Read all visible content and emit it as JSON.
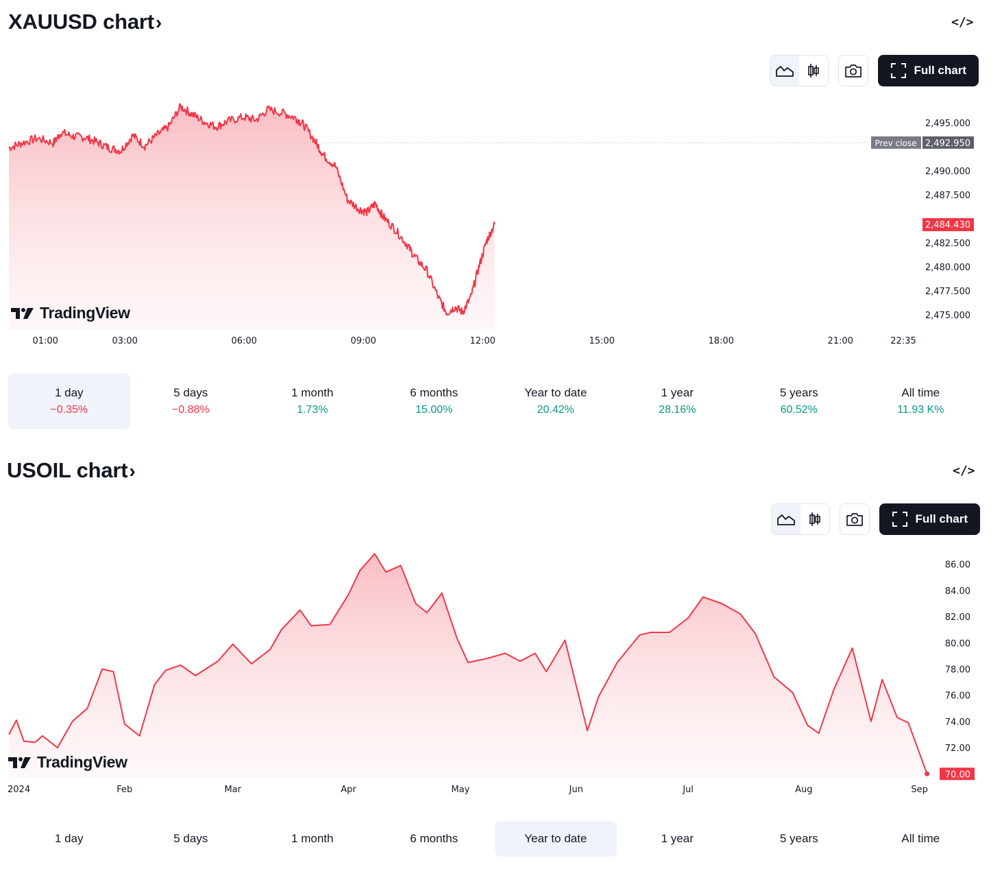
{
  "gold": {
    "title": "XAUUSD chart",
    "title_arrow": "›",
    "embed_label": "</>",
    "full_chart_label": "Full chart",
    "logo_text": "TradingView",
    "prev_close_label": "Prev close",
    "prev_close_value": "2,492.950",
    "last_price_label": "2,484.430",
    "tabs": [
      {
        "label": "1 day",
        "change": "−0.35%",
        "dir": "neg",
        "active": true
      },
      {
        "label": "5 days",
        "change": "−0.88%",
        "dir": "neg",
        "active": false
      },
      {
        "label": "1 month",
        "change": "1.73%",
        "dir": "pos",
        "active": false
      },
      {
        "label": "6 months",
        "change": "15.00%",
        "dir": "pos",
        "active": false
      },
      {
        "label": "Year to date",
        "change": "20.42%",
        "dir": "pos",
        "active": false
      },
      {
        "label": "1 year",
        "change": "28.16%",
        "dir": "pos",
        "active": false
      },
      {
        "label": "5 years",
        "change": "60.52%",
        "dir": "pos",
        "active": false
      },
      {
        "label": "All time",
        "change": "11.93 K%",
        "dir": "pos",
        "active": false
      }
    ]
  },
  "oil": {
    "title": "USOIL chart",
    "title_arrow": "›",
    "embed_label": "</>",
    "full_chart_label": "Full chart",
    "logo_text": "TradingView",
    "last_price_label": "70.00",
    "tabs": [
      {
        "label": "1 day",
        "active": false
      },
      {
        "label": "5 days",
        "active": false
      },
      {
        "label": "1 month",
        "active": false
      },
      {
        "label": "6 months",
        "active": false
      },
      {
        "label": "Year to date",
        "active": true
      },
      {
        "label": "1 year",
        "active": false
      },
      {
        "label": "5 years",
        "active": false
      },
      {
        "label": "All time",
        "active": false
      }
    ]
  },
  "colors": {
    "line": "#f23645",
    "fill_top": "#f9c5ca",
    "axis_text": "#131722",
    "prev_close_bg": "#787b86",
    "neg": "#f23645",
    "pos": "#089981"
  },
  "chart_data": [
    {
      "type": "area",
      "symbol": "XAUUSD",
      "x_unit": "hours",
      "x_ticks": [
        1,
        3,
        6,
        9,
        12,
        15,
        18,
        21,
        22.583
      ],
      "x_tick_labels": [
        "01:00",
        "03:00",
        "06:00",
        "09:00",
        "12:00",
        "15:00",
        "18:00",
        "21:00",
        "22:35"
      ],
      "xlim": [
        0.083,
        22.583
      ],
      "y_ticks": [
        2495,
        2490,
        2487.5,
        2482.5,
        2480,
        2477.5,
        2475
      ],
      "y_tick_labels": [
        "2,495.000",
        "2,490.000",
        "2,487.500",
        "2,482.500",
        "2,480.000",
        "2,477.500",
        "2,475.000"
      ],
      "ylim": [
        2473.5,
        2497.8
      ],
      "prev_close": 2492.95,
      "last_value": 2484.43,
      "grid": false,
      "x": [
        0.083,
        0.4,
        0.8,
        1.2,
        1.4,
        1.7,
        2.0,
        2.3,
        2.6,
        2.9,
        3.2,
        3.5,
        3.8,
        4.1,
        4.4,
        4.7,
        5.0,
        5.3,
        5.6,
        6.0,
        6.3,
        6.6,
        7.0,
        7.3,
        7.5,
        7.8,
        8.0,
        8.3,
        8.6,
        8.9,
        9.1,
        9.3,
        9.5,
        9.8,
        10.1,
        10.3,
        10.6,
        10.9,
        11.1,
        11.3,
        11.5,
        11.7,
        11.9,
        12.1,
        12.3
      ],
      "y": [
        2492.4,
        2492.9,
        2493.4,
        2492.9,
        2494.0,
        2493.6,
        2493.5,
        2493.0,
        2492.4,
        2492.1,
        2493.7,
        2492.6,
        2493.7,
        2494.6,
        2496.7,
        2495.9,
        2495.1,
        2494.6,
        2495.2,
        2495.6,
        2495.3,
        2496.4,
        2496.0,
        2495.5,
        2494.8,
        2493.0,
        2491.6,
        2490.5,
        2487.0,
        2486.0,
        2485.7,
        2486.6,
        2485.2,
        2483.9,
        2482.3,
        2481.0,
        2479.6,
        2476.7,
        2475.2,
        2475.8,
        2475.3,
        2476.8,
        2479.9,
        2482.7,
        2484.43
      ]
    },
    {
      "type": "area",
      "symbol": "USOIL",
      "x_tick_labels": [
        "2024",
        "Feb",
        "Mar",
        "Apr",
        "May",
        "Jun",
        "Jul",
        "Aug",
        "Sep"
      ],
      "x_ticks": [
        "2024-01-01",
        "2024-02-01",
        "2024-03-01",
        "2024-04-01",
        "2024-05-01",
        "2024-06-01",
        "2024-07-01",
        "2024-08-01",
        "2024-09-01"
      ],
      "xlim": [
        "2024-01-01",
        "2024-09-04"
      ],
      "y_ticks": [
        86,
        84,
        82,
        80,
        78,
        76,
        74,
        72
      ],
      "y_tick_labels": [
        "86.00",
        "84.00",
        "82.00",
        "80.00",
        "78.00",
        "76.00",
        "74.00",
        "72.00"
      ],
      "ylim": [
        69.7,
        87.5
      ],
      "last_value": 70.0,
      "grid": false,
      "x": [
        "2024-01-01",
        "2024-01-03",
        "2024-01-05",
        "2024-01-08",
        "2024-01-10",
        "2024-01-14",
        "2024-01-18",
        "2024-01-22",
        "2024-01-26",
        "2024-01-29",
        "2024-02-01",
        "2024-02-05",
        "2024-02-09",
        "2024-02-12",
        "2024-02-16",
        "2024-02-20",
        "2024-02-26",
        "2024-03-01",
        "2024-03-06",
        "2024-03-11",
        "2024-03-14",
        "2024-03-19",
        "2024-03-22",
        "2024-03-27",
        "2024-04-01",
        "2024-04-04",
        "2024-04-08",
        "2024-04-11",
        "2024-04-15",
        "2024-04-19",
        "2024-04-22",
        "2024-04-26",
        "2024-04-30",
        "2024-05-03",
        "2024-05-08",
        "2024-05-13",
        "2024-05-17",
        "2024-05-21",
        "2024-05-24",
        "2024-05-29",
        "2024-06-04",
        "2024-06-07",
        "2024-06-12",
        "2024-06-18",
        "2024-06-21",
        "2024-06-26",
        "2024-07-01",
        "2024-07-05",
        "2024-07-10",
        "2024-07-15",
        "2024-07-19",
        "2024-07-24",
        "2024-07-29",
        "2024-08-02",
        "2024-08-05",
        "2024-08-09",
        "2024-08-14",
        "2024-08-19",
        "2024-08-22",
        "2024-08-26",
        "2024-08-29",
        "2024-09-03"
      ],
      "y": [
        73.0,
        74.1,
        72.5,
        72.4,
        72.9,
        72.0,
        74.0,
        75.0,
        78.0,
        77.8,
        73.8,
        72.9,
        76.8,
        77.9,
        78.3,
        77.5,
        78.6,
        79.9,
        78.4,
        79.5,
        81.0,
        82.5,
        81.3,
        81.4,
        83.7,
        85.5,
        86.8,
        85.4,
        85.9,
        83.0,
        82.3,
        83.8,
        80.4,
        78.5,
        78.8,
        79.2,
        78.6,
        79.2,
        77.8,
        80.2,
        73.3,
        75.9,
        78.5,
        80.6,
        80.8,
        80.8,
        81.9,
        83.5,
        83.0,
        82.2,
        80.7,
        77.4,
        76.2,
        73.7,
        73.1,
        76.4,
        79.6,
        74.0,
        77.2,
        74.3,
        73.9,
        70.0
      ]
    }
  ]
}
